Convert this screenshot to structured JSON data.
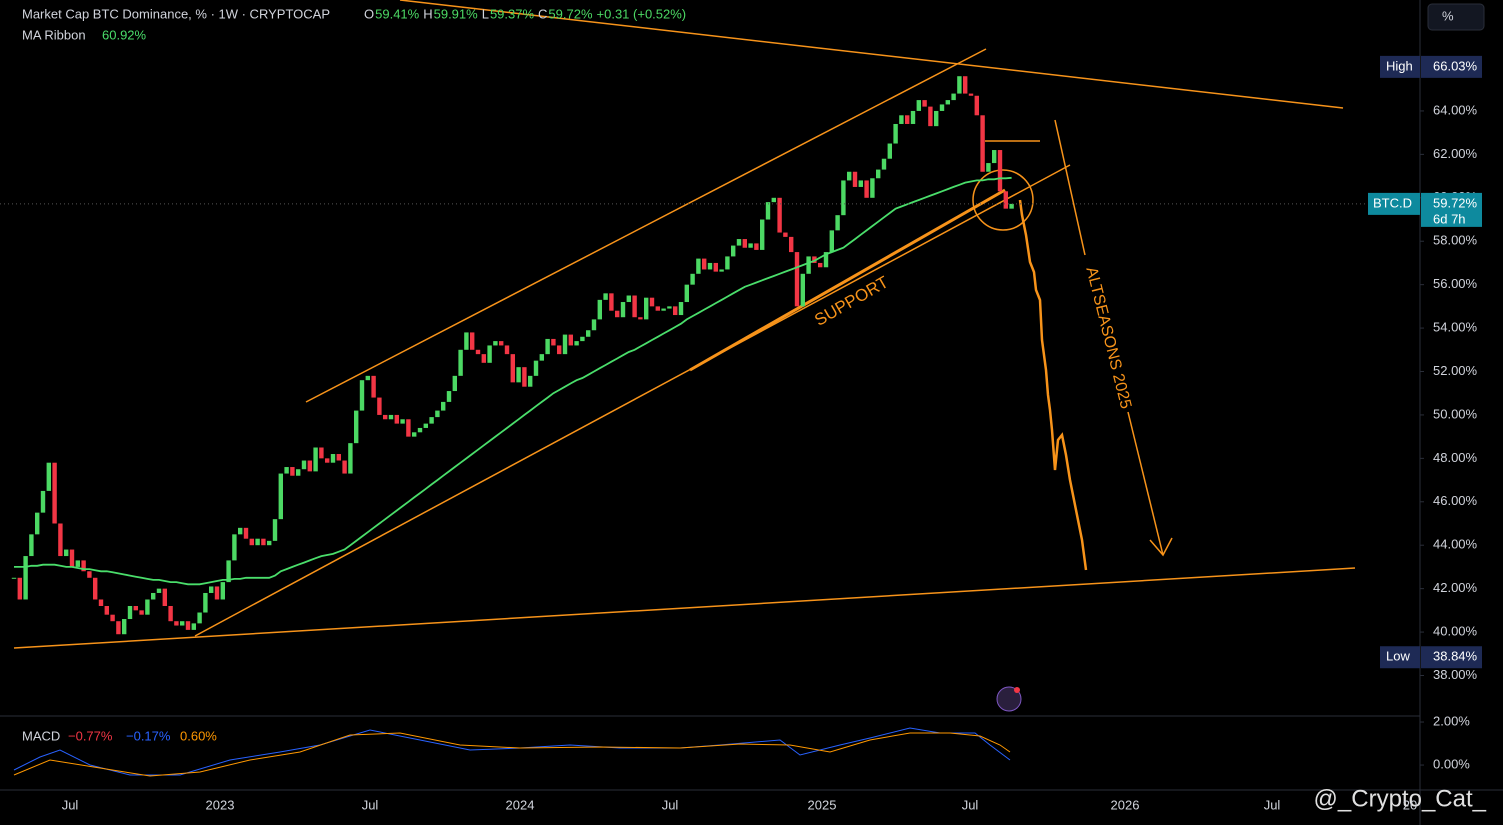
{
  "chart_data": {
    "type": "candlestick",
    "title": "Market Cap BTC Dominance, % · 1W · CRYPTOCAP",
    "ohlc": [
      {
        "key": "O",
        "label": "59.41%"
      },
      {
        "key": "H",
        "label": "59.91%"
      },
      {
        "key": "L",
        "label": "59.37%"
      },
      {
        "key": "C",
        "label": "59.72%"
      }
    ],
    "change": "+0.31 (+0.52%)",
    "up_color": "#4cd964",
    "down_color": "#f23645",
    "close": [
      42.5,
      41.5,
      43.5,
      44.5,
      45.5,
      46.5,
      47.8,
      45,
      43.5,
      43.8,
      43,
      43.3,
      42.8,
      42.5,
      41.5,
      41.2,
      40.8,
      40.5,
      39.9,
      40.6,
      41.2,
      41,
      40.8,
      41.5,
      41.8,
      42,
      41.2,
      40.5,
      40.3,
      40.5,
      40.1,
      40.4,
      40.9,
      41.8,
      42.1,
      41.5,
      42.3,
      43.3,
      44.5,
      44.8,
      44.3,
      44,
      44.3,
      44,
      44.2,
      45.2,
      47.3,
      47.6,
      47.2,
      47.5,
      47.9,
      47.4,
      48.5,
      48,
      47.8,
      48.2,
      47.9,
      47.3,
      48.7,
      50.2,
      51.6,
      51.8,
      50.8,
      50,
      49.8,
      50,
      49.6,
      49.8,
      49,
      49.2,
      49.4,
      49.6,
      49.9,
      50.2,
      50.6,
      51.1,
      51.8,
      53,
      53.8,
      53,
      52.8,
      52.4,
      53.2,
      53.4,
      53.2,
      52.8,
      51.5,
      52.2,
      51.3,
      51.8,
      52.5,
      52.8,
      53.5,
      53.2,
      52.8,
      53.7,
      53.2,
      53.4,
      53.6,
      53.9,
      54.4,
      55.3,
      55.6,
      54.8,
      54.5,
      55.2,
      55.5,
      54.5,
      54.4,
      55.4,
      55,
      54.8,
      54.9,
      55,
      54.6,
      55.2,
      56,
      56.5,
      57.2,
      56.7,
      57,
      56.6,
      56.7,
      57.3,
      57.8,
      58.1,
      57.7,
      57.9,
      57.6,
      59,
      59.8,
      60,
      58.4,
      58.2,
      57.5,
      55,
      56.5,
      57.3,
      57,
      56.8,
      57.5,
      58.5,
      59.2,
      60.8,
      61.2,
      60.5,
      60.8,
      60,
      60.9,
      61.3,
      61.8,
      62.5,
      63.4,
      63.8,
      63.4,
      64,
      64.5,
      64.2,
      63.3,
      64,
      64.3,
      64.5,
      64.8,
      65.6,
      64.8,
      64.7,
      63.8,
      61.2,
      61.6,
      62.2,
      60.3,
      59.5,
      59.72
    ],
    "ma": {
      "name": "MA Ribbon",
      "value_label": "60.92%",
      "color": "#4ade6b",
      "values": [
        43,
        43,
        43,
        43.05,
        43.05,
        43.1,
        43.1,
        43.1,
        43.05,
        43,
        43,
        42.95,
        42.9,
        42.9,
        42.85,
        42.8,
        42.8,
        42.75,
        42.7,
        42.65,
        42.6,
        42.55,
        42.5,
        42.45,
        42.4,
        42.4,
        42.35,
        42.3,
        42.3,
        42.25,
        42.2,
        42.2,
        42.2,
        42.25,
        42.3,
        42.35,
        42.4,
        42.4,
        42.45,
        42.45,
        42.5,
        42.5,
        42.5,
        42.5,
        42.5,
        42.6,
        42.8,
        42.9,
        43,
        43.1,
        43.2,
        43.3,
        43.4,
        43.5,
        43.55,
        43.6,
        43.7,
        43.8,
        44,
        44.2,
        44.4,
        44.6,
        44.8,
        45,
        45.2,
        45.4,
        45.6,
        45.8,
        46,
        46.2,
        46.4,
        46.6,
        46.8,
        47,
        47.2,
        47.4,
        47.6,
        47.8,
        48,
        48.2,
        48.4,
        48.6,
        48.8,
        49,
        49.2,
        49.4,
        49.6,
        49.8,
        50,
        50.2,
        50.4,
        50.6,
        50.8,
        51,
        51.15,
        51.3,
        51.45,
        51.6,
        51.7,
        51.85,
        52,
        52.15,
        52.3,
        52.45,
        52.6,
        52.75,
        52.9,
        53,
        53.15,
        53.3,
        53.45,
        53.6,
        53.75,
        53.9,
        54.05,
        54.2,
        54.4,
        54.55,
        54.7,
        54.85,
        55,
        55.15,
        55.3,
        55.45,
        55.6,
        55.75,
        55.9,
        56,
        56.1,
        56.2,
        56.3,
        56.4,
        56.5,
        56.6,
        56.7,
        56.8,
        56.9,
        57,
        57.1,
        57.25,
        57.4,
        57.5,
        57.6,
        57.7,
        57.9,
        58.1,
        58.3,
        58.5,
        58.7,
        58.9,
        59.1,
        59.3,
        59.5,
        59.6,
        59.7,
        59.8,
        59.9,
        60,
        60.1,
        60.2,
        60.3,
        60.4,
        60.5,
        60.6,
        60.7,
        60.75,
        60.8,
        60.8,
        60.85,
        60.85,
        60.9,
        60.9,
        60.92
      ]
    },
    "ylim": [
      36.18,
      69.11
    ],
    "yticks": [
      {
        "value": 38,
        "label": "38.00%"
      },
      {
        "value": 40,
        "label": "40.00%"
      },
      {
        "value": 42,
        "label": "42.00%"
      },
      {
        "value": 44,
        "label": "44.00%"
      },
      {
        "value": 46,
        "label": "46.00%"
      },
      {
        "value": 48,
        "label": "48.00%"
      },
      {
        "value": 50,
        "label": "50.00%"
      },
      {
        "value": 52,
        "label": "52.00%"
      },
      {
        "value": 54,
        "label": "54.00%"
      },
      {
        "value": 56,
        "label": "56.00%"
      },
      {
        "value": 58,
        "label": "58.00%"
      },
      {
        "value": 60,
        "label": "60.00%"
      },
      {
        "value": 62,
        "label": "62.00%"
      },
      {
        "value": 64,
        "label": "64.00%"
      }
    ],
    "markers": [
      {
        "label": "High",
        "value": 66.03,
        "value_label": "66.03%",
        "color": "#1e2a55"
      },
      {
        "label": "BTC.D",
        "value": 59.72,
        "value_label": "59.72%",
        "countdown": "6d 7h",
        "color": "#0e8a9e"
      },
      {
        "label": "Low",
        "value": 38.84,
        "value_label": "38.84%",
        "color": "#1e2a55"
      }
    ],
    "annotations": [
      "SUPPORT",
      "ALTSEASONS 2025"
    ],
    "macd": {
      "name": "MACD",
      "values": [
        "−0.77%",
        "−0.17%",
        "0.60%"
      ],
      "yticks": [
        {
          "value": 2,
          "label": "2.00%"
        },
        {
          "value": 0,
          "label": "0.00%"
        }
      ],
      "ylim": [
        -1.16,
        2.28
      ]
    },
    "time_labels": [
      "Jul",
      "2023",
      "Jul",
      "2024",
      "Jul",
      "2025",
      "Jul",
      "2026",
      "Jul",
      "20"
    ],
    "unit_button": "%",
    "watermark": "@_Crypto_Cat_"
  }
}
